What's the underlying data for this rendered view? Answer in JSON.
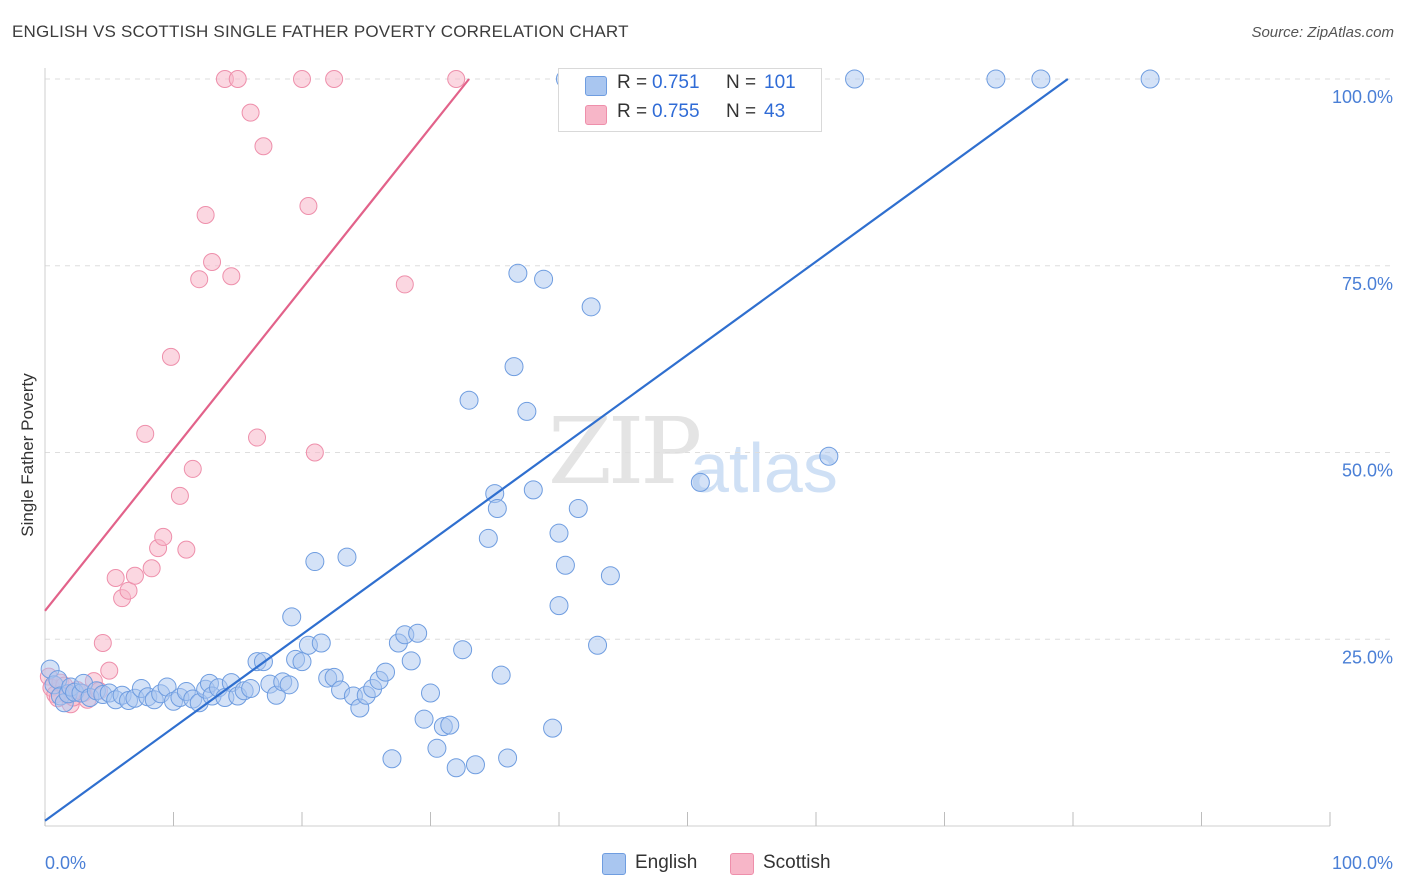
{
  "header": {
    "title": "ENGLISH VS SCOTTISH SINGLE FATHER POVERTY CORRELATION CHART",
    "source": "Source: ZipAtlas.com"
  },
  "watermark": {
    "zip": "ZIP",
    "atlas": "atlas"
  },
  "legend": {
    "english": {
      "r_label": "R =",
      "r_value": "0.751",
      "n_label": "N =",
      "n_value": "101"
    },
    "scottish": {
      "r_label": "R =",
      "r_value": "0.755",
      "n_label": "N =",
      "n_value": "43"
    }
  },
  "bottom_legend": {
    "english": "English",
    "scottish": "Scottish"
  },
  "colors": {
    "english_fill": "#a9c6f0",
    "english_stroke": "#6f9de0",
    "english_line": "#2f6fcf",
    "scottish_fill": "#f7b6c8",
    "scottish_stroke": "#ee8fab",
    "scottish_line": "#e2628a",
    "tick": "#4a7fd6",
    "grid": "#dedede"
  },
  "chart_data": {
    "type": "scatter",
    "title": "ENGLISH VS SCOTTISH SINGLE FATHER POVERTY CORRELATION CHART",
    "xlabel": "",
    "ylabel": "Single Father Poverty",
    "xlim": [
      0,
      100
    ],
    "ylim": [
      0,
      100
    ],
    "x_tick_labels": [
      "0.0%",
      "100.0%"
    ],
    "y_ticks": [
      25,
      50,
      75,
      100
    ],
    "y_tick_labels": [
      "25.0%",
      "50.0%",
      "75.0%",
      "100.0%"
    ],
    "grid": true,
    "series": [
      {
        "name": "English",
        "trend": {
          "x": [
            0,
            79.6
          ],
          "y": [
            0.7,
            100
          ]
        },
        "points": [
          [
            0.4,
            21.0
          ],
          [
            0.7,
            18.9
          ],
          [
            1.0,
            19.6
          ],
          [
            1.2,
            17.4
          ],
          [
            1.5,
            16.5
          ],
          [
            1.8,
            17.7
          ],
          [
            2.0,
            18.6
          ],
          [
            2.3,
            17.9
          ],
          [
            2.8,
            17.8
          ],
          [
            3.0,
            19.1
          ],
          [
            3.5,
            17.2
          ],
          [
            4.0,
            18.1
          ],
          [
            4.5,
            17.6
          ],
          [
            5.0,
            17.8
          ],
          [
            5.5,
            16.9
          ],
          [
            6.0,
            17.5
          ],
          [
            6.5,
            16.8
          ],
          [
            7.0,
            17.1
          ],
          [
            7.5,
            18.4
          ],
          [
            8.0,
            17.3
          ],
          [
            8.5,
            16.9
          ],
          [
            9.0,
            17.7
          ],
          [
            9.5,
            18.6
          ],
          [
            10.0,
            16.7
          ],
          [
            10.5,
            17.2
          ],
          [
            11.0,
            18.0
          ],
          [
            11.5,
            17.0
          ],
          [
            12.0,
            16.5
          ],
          [
            12.5,
            18.3
          ],
          [
            12.8,
            19.1
          ],
          [
            13.0,
            17.4
          ],
          [
            13.5,
            18.5
          ],
          [
            14.0,
            17.2
          ],
          [
            14.5,
            19.2
          ],
          [
            15.0,
            17.4
          ],
          [
            15.5,
            18.1
          ],
          [
            16.0,
            18.4
          ],
          [
            16.5,
            22.0
          ],
          [
            17.0,
            22.0
          ],
          [
            17.5,
            19.0
          ],
          [
            18.0,
            17.5
          ],
          [
            18.5,
            19.3
          ],
          [
            19.0,
            18.9
          ],
          [
            19.2,
            28.0
          ],
          [
            19.5,
            22.3
          ],
          [
            20.0,
            22.0
          ],
          [
            20.5,
            24.2
          ],
          [
            21.0,
            35.4
          ],
          [
            21.5,
            24.5
          ],
          [
            22.0,
            19.8
          ],
          [
            22.5,
            19.9
          ],
          [
            23.0,
            18.2
          ],
          [
            23.5,
            36.0
          ],
          [
            24.0,
            17.4
          ],
          [
            24.5,
            15.8
          ],
          [
            25.0,
            17.5
          ],
          [
            25.5,
            18.4
          ],
          [
            26.0,
            19.5
          ],
          [
            26.5,
            20.6
          ],
          [
            27.0,
            9.0
          ],
          [
            27.5,
            24.5
          ],
          [
            28.0,
            25.6
          ],
          [
            28.5,
            22.1
          ],
          [
            29.0,
            25.8
          ],
          [
            29.5,
            14.3
          ],
          [
            30.0,
            17.8
          ],
          [
            30.5,
            10.4
          ],
          [
            31.0,
            13.3
          ],
          [
            31.5,
            13.5
          ],
          [
            32.0,
            7.8
          ],
          [
            32.5,
            23.6
          ],
          [
            33.0,
            57.0
          ],
          [
            33.5,
            8.2
          ],
          [
            34.5,
            38.5
          ],
          [
            35.0,
            44.5
          ],
          [
            35.2,
            42.5
          ],
          [
            35.5,
            20.2
          ],
          [
            36.0,
            9.1
          ],
          [
            36.5,
            61.5
          ],
          [
            36.8,
            74.0
          ],
          [
            37.5,
            55.5
          ],
          [
            38.0,
            45.0
          ],
          [
            38.8,
            73.2
          ],
          [
            39.5,
            13.1
          ],
          [
            40.0,
            39.2
          ],
          [
            40.0,
            29.5
          ],
          [
            40.5,
            34.9
          ],
          [
            41.5,
            42.5
          ],
          [
            42.5,
            69.5
          ],
          [
            43.0,
            24.2
          ],
          [
            44.0,
            33.5
          ],
          [
            51.0,
            46.0
          ],
          [
            61.0,
            49.5
          ],
          [
            44.0,
            100.0
          ],
          [
            53.5,
            100.0
          ],
          [
            58.5,
            100.0
          ],
          [
            63.0,
            100.0
          ],
          [
            74.0,
            100.0
          ],
          [
            77.5,
            100.0
          ],
          [
            86.0,
            100.0
          ],
          [
            40.5,
            100.0
          ]
        ]
      },
      {
        "name": "Scottish",
        "trend": {
          "x": [
            0,
            33.0
          ],
          "y": [
            28.8,
            100
          ]
        },
        "points": [
          [
            0.3,
            20.0
          ],
          [
            0.5,
            18.5
          ],
          [
            0.8,
            17.6
          ],
          [
            1.0,
            17.1
          ],
          [
            1.2,
            19.2
          ],
          [
            1.5,
            18.8
          ],
          [
            1.8,
            17.5
          ],
          [
            2.0,
            16.3
          ],
          [
            2.2,
            17.2
          ],
          [
            2.5,
            18.2
          ],
          [
            3.0,
            17.8
          ],
          [
            3.3,
            16.9
          ],
          [
            3.8,
            19.4
          ],
          [
            4.2,
            18.1
          ],
          [
            4.5,
            24.5
          ],
          [
            5.0,
            20.8
          ],
          [
            5.5,
            33.2
          ],
          [
            6.0,
            30.5
          ],
          [
            6.5,
            31.5
          ],
          [
            7.0,
            33.5
          ],
          [
            7.8,
            52.5
          ],
          [
            8.3,
            34.5
          ],
          [
            8.8,
            37.2
          ],
          [
            9.2,
            38.7
          ],
          [
            9.8,
            62.8
          ],
          [
            10.5,
            44.2
          ],
          [
            11.0,
            37.0
          ],
          [
            11.5,
            47.8
          ],
          [
            12.0,
            73.2
          ],
          [
            12.5,
            81.8
          ],
          [
            13.0,
            75.5
          ],
          [
            14.0,
            100.0
          ],
          [
            14.5,
            73.6
          ],
          [
            15.0,
            100.0
          ],
          [
            16.0,
            95.5
          ],
          [
            16.5,
            52.0
          ],
          [
            17.0,
            91.0
          ],
          [
            20.0,
            100.0
          ],
          [
            20.5,
            83.0
          ],
          [
            21.0,
            50.0
          ],
          [
            22.5,
            100.0
          ],
          [
            28.0,
            72.5
          ],
          [
            32.0,
            100.0
          ]
        ]
      }
    ]
  }
}
